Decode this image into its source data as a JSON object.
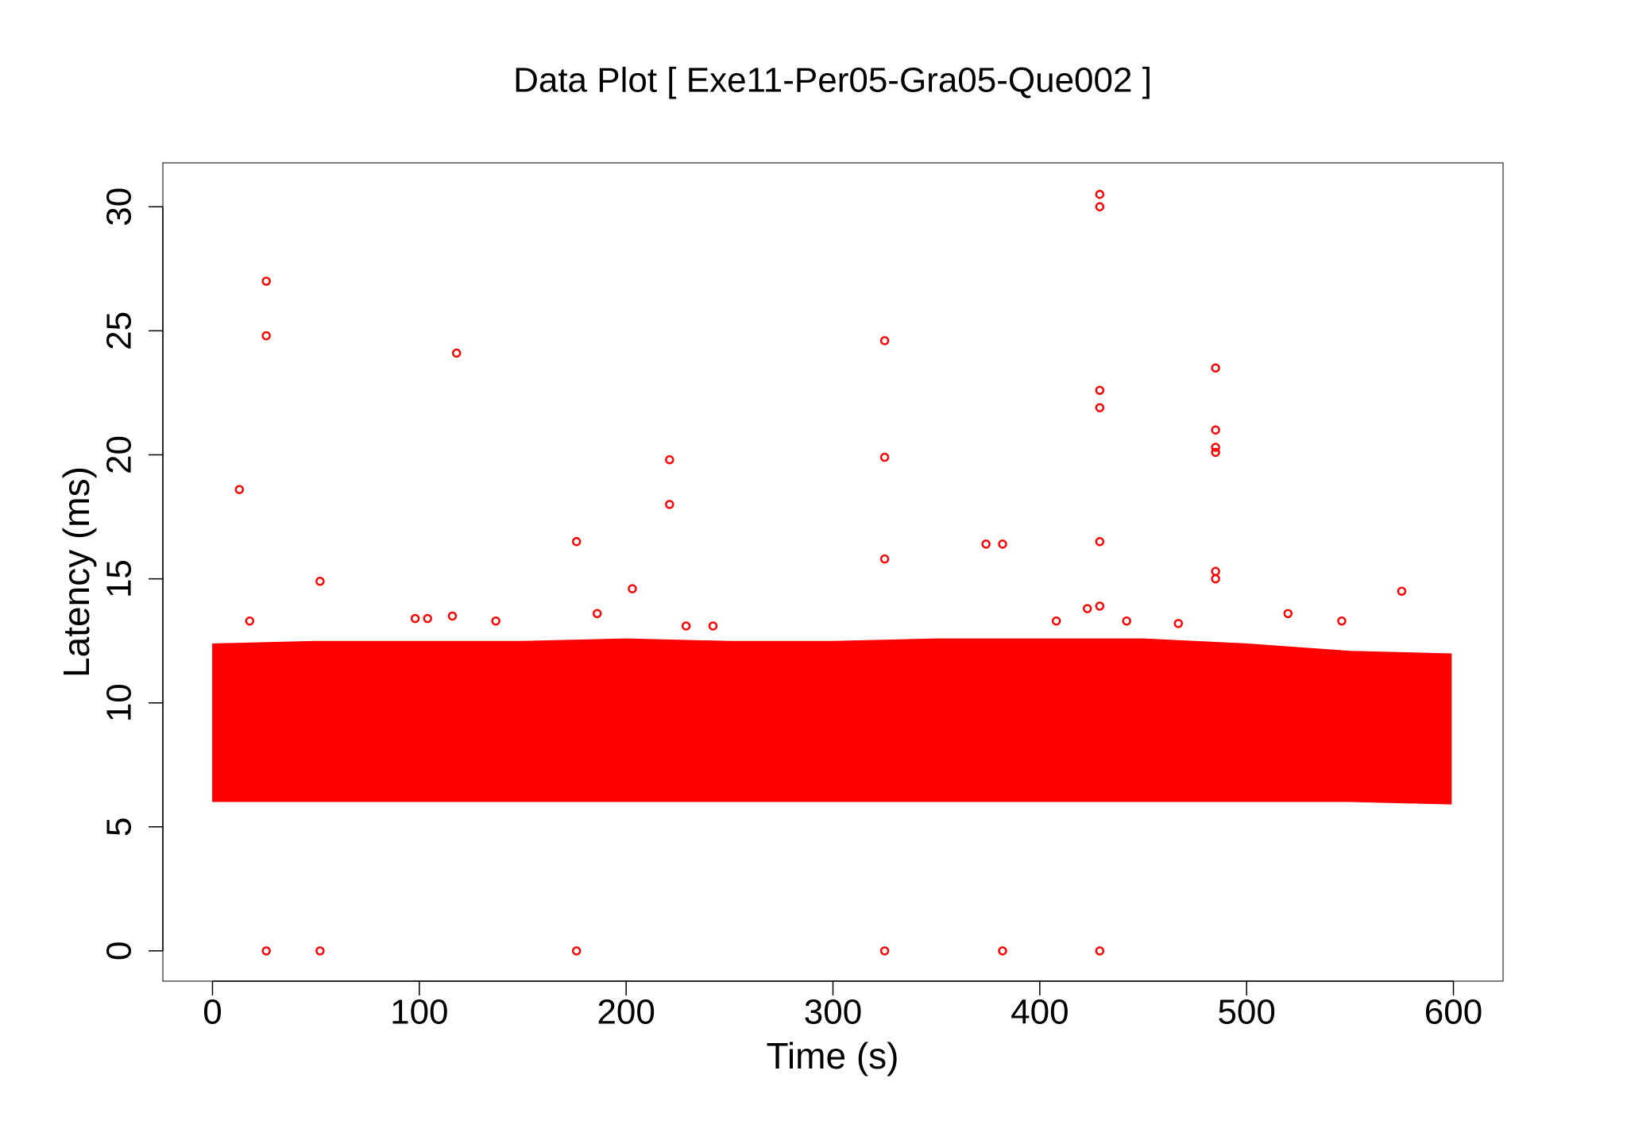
{
  "chart_data": {
    "type": "scatter",
    "title": "Data Plot [ Exe11-Per05-Gra05-Que002 ]",
    "x_label": "Time (s)",
    "y_label": "Latency (ms)",
    "color": "#ff0000",
    "xlim": [
      -24,
      624
    ],
    "ylim": [
      -1.22,
      31.77
    ],
    "xticks": [
      0,
      100,
      200,
      300,
      400,
      500,
      600
    ],
    "yticks": [
      0,
      5,
      10,
      15,
      20,
      25,
      30
    ],
    "band": {
      "x": [
        1,
        50,
        100,
        150,
        200,
        250,
        300,
        350,
        400,
        450,
        500,
        550,
        598
      ],
      "high": [
        12.3,
        12.4,
        12.4,
        12.4,
        12.5,
        12.4,
        12.4,
        12.5,
        12.5,
        12.5,
        12.3,
        12.0,
        11.9
      ],
      "low": [
        6.1,
        6.1,
        6.1,
        6.1,
        6.1,
        6.1,
        6.1,
        6.1,
        6.1,
        6.1,
        6.1,
        6.1,
        6.0
      ]
    },
    "x": [
      26,
      26,
      118,
      13,
      52,
      325,
      325,
      325,
      221,
      221,
      176,
      203,
      429,
      429,
      429,
      429,
      429,
      429,
      374,
      382,
      485,
      485,
      485,
      485,
      485,
      485,
      575,
      186,
      520,
      546,
      18,
      98,
      104,
      116,
      137,
      229,
      242,
      408,
      442,
      467,
      423,
      26,
      52,
      176,
      325,
      382,
      429
    ],
    "y": [
      27,
      24.8,
      24.1,
      18.6,
      14.9,
      24.6,
      19.9,
      15.8,
      19.8,
      18.0,
      16.5,
      14.6,
      30.5,
      30.0,
      22.6,
      21.9,
      16.5,
      13.9,
      16.4,
      16.4,
      23.5,
      21.0,
      20.3,
      20.1,
      15.3,
      15.0,
      14.5,
      13.6,
      13.6,
      13.3,
      13.3,
      13.4,
      13.4,
      13.5,
      13.3,
      13.1,
      13.1,
      13.3,
      13.3,
      13.2,
      13.8,
      0,
      0,
      0,
      0,
      0,
      0
    ]
  }
}
